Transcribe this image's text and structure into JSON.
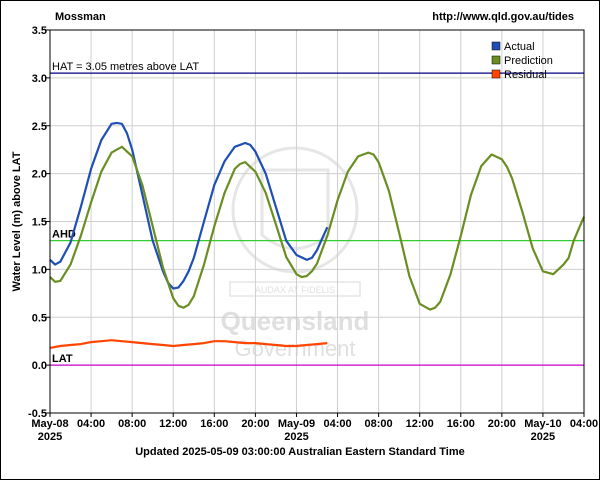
{
  "header": {
    "location": "Mossman",
    "source_url": "http://www.qld.gov.au/tides"
  },
  "footer": {
    "updated": "Updated 2025-05-09 03:00:00 Australian Eastern Standard Time"
  },
  "watermark": {
    "motto": "AUDAX AT FIDELIS",
    "line1": "Queensland",
    "line2": "Government"
  },
  "chart_data": {
    "type": "line",
    "title": "",
    "xlabel": "",
    "ylabel": "Water Level (m) above LAT",
    "ylim": [
      -0.5,
      3.5
    ],
    "yticks": [
      -0.5,
      0.0,
      0.5,
      1.0,
      1.5,
      2.0,
      2.5,
      3.0,
      3.5
    ],
    "ytick_labels": [
      "-0.5",
      "0.0",
      "0.5",
      "1.0",
      "1.5",
      "2.0",
      "2.5",
      "3.0",
      "3.5"
    ],
    "x_unit": "hours since 2025-05-08 00:00",
    "xlim": [
      0,
      52
    ],
    "xticks": [
      {
        "hour": 0,
        "label": "May-08",
        "sub": "2025"
      },
      {
        "hour": 4,
        "label": "04:00",
        "sub": ""
      },
      {
        "hour": 8,
        "label": "08:00",
        "sub": ""
      },
      {
        "hour": 12,
        "label": "12:00",
        "sub": ""
      },
      {
        "hour": 16,
        "label": "16:00",
        "sub": ""
      },
      {
        "hour": 20,
        "label": "20:00",
        "sub": ""
      },
      {
        "hour": 24,
        "label": "May-09",
        "sub": "2025"
      },
      {
        "hour": 28,
        "label": "04:00",
        "sub": ""
      },
      {
        "hour": 32,
        "label": "08:00",
        "sub": ""
      },
      {
        "hour": 36,
        "label": "12:00",
        "sub": ""
      },
      {
        "hour": 40,
        "label": "16:00",
        "sub": ""
      },
      {
        "hour": 44,
        "label": "20:00",
        "sub": ""
      },
      {
        "hour": 48,
        "label": "May-10",
        "sub": "2025"
      },
      {
        "hour": 52,
        "label": "04:00",
        "sub": ""
      }
    ],
    "grid": true,
    "legend_position": "top-right",
    "reference_lines": [
      {
        "label": "HAT = 3.05 metres above LAT",
        "y": 3.05,
        "color": "#000080"
      },
      {
        "label": "AHD",
        "y": 1.3,
        "color": "#33cc33"
      },
      {
        "label": "LAT",
        "y": 0.0,
        "color": "#cc00cc"
      }
    ],
    "series": [
      {
        "name": "Actual",
        "color": "#1f4fb4",
        "x": [
          0,
          0.5,
          1,
          2,
          3,
          4,
          5,
          6,
          6.5,
          7,
          7.5,
          8,
          9,
          10,
          11,
          11.5,
          12,
          12.5,
          13,
          13.5,
          14,
          15,
          16,
          17,
          18,
          19,
          19.5,
          20,
          21,
          22,
          23,
          24,
          25,
          25.5,
          26,
          26.5,
          27
        ],
        "y": [
          1.1,
          1.05,
          1.08,
          1.28,
          1.65,
          2.05,
          2.35,
          2.52,
          2.53,
          2.52,
          2.42,
          2.25,
          1.78,
          1.3,
          0.98,
          0.86,
          0.8,
          0.81,
          0.88,
          0.98,
          1.12,
          1.5,
          1.88,
          2.13,
          2.28,
          2.32,
          2.3,
          2.23,
          2.0,
          1.65,
          1.3,
          1.15,
          1.1,
          1.12,
          1.2,
          1.32,
          1.44
        ]
      },
      {
        "name": "Prediction",
        "color": "#6b8e23",
        "x": [
          0,
          0.5,
          1,
          2,
          3,
          4,
          5,
          6,
          7,
          8,
          9,
          10,
          11,
          12,
          12.5,
          13,
          13.5,
          14,
          15,
          16,
          17,
          18,
          18.5,
          19,
          20,
          21,
          22,
          23,
          24,
          24.5,
          25,
          25.5,
          26,
          27,
          28,
          29,
          30,
          31,
          31.5,
          32,
          33,
          34,
          35,
          36,
          37,
          37.5,
          38,
          39,
          40,
          41,
          42,
          43,
          44,
          44.5,
          45,
          46,
          47,
          48,
          49,
          50,
          50.5,
          51,
          52
        ],
        "y": [
          0.92,
          0.87,
          0.88,
          1.05,
          1.35,
          1.7,
          2.02,
          2.22,
          2.28,
          2.18,
          1.88,
          1.45,
          1.02,
          0.7,
          0.62,
          0.6,
          0.63,
          0.72,
          1.05,
          1.45,
          1.8,
          2.05,
          2.1,
          2.12,
          2.02,
          1.8,
          1.47,
          1.13,
          0.95,
          0.92,
          0.93,
          0.98,
          1.06,
          1.35,
          1.72,
          2.02,
          2.18,
          2.22,
          2.2,
          2.12,
          1.82,
          1.38,
          0.93,
          0.64,
          0.58,
          0.6,
          0.66,
          0.95,
          1.35,
          1.78,
          2.08,
          2.2,
          2.15,
          2.07,
          1.95,
          1.6,
          1.22,
          0.98,
          0.95,
          1.05,
          1.12,
          1.3,
          1.55
        ]
      },
      {
        "name": "Residual",
        "color": "#ff4500",
        "x": [
          0,
          1,
          2,
          3,
          4,
          5,
          6,
          7,
          8,
          9,
          10,
          11,
          12,
          13,
          14,
          15,
          16,
          17,
          18,
          19,
          20,
          21,
          22,
          23,
          24,
          25,
          26,
          27
        ],
        "y": [
          0.18,
          0.2,
          0.21,
          0.22,
          0.24,
          0.25,
          0.26,
          0.25,
          0.24,
          0.23,
          0.22,
          0.21,
          0.2,
          0.21,
          0.22,
          0.23,
          0.25,
          0.25,
          0.24,
          0.23,
          0.23,
          0.22,
          0.21,
          0.2,
          0.2,
          0.21,
          0.22,
          0.23
        ]
      }
    ]
  }
}
